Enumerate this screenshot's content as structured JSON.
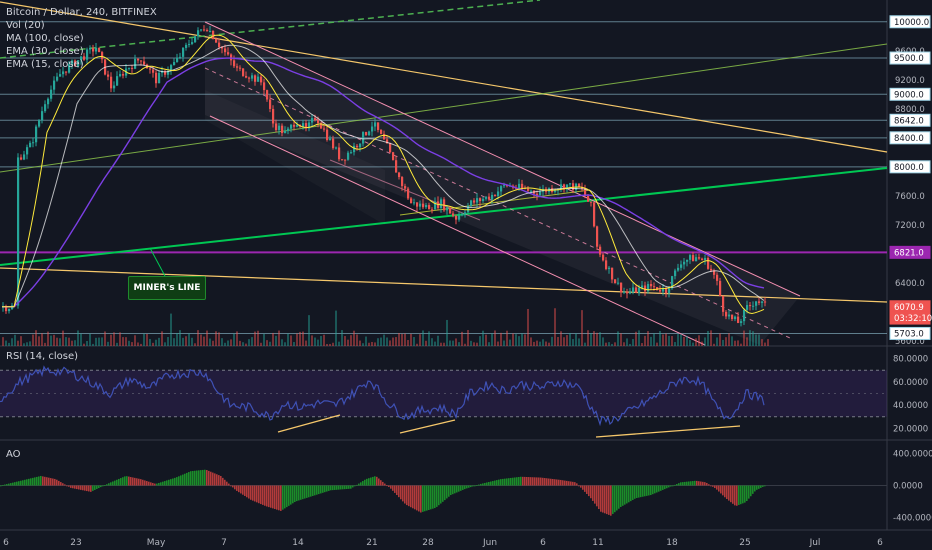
{
  "header": {
    "title": "Bitcoin / Dollar, 240, BITFINEX",
    "indicators": [
      "Vol (20)",
      "MA (100, close)",
      "EMA (30, close)",
      "EMA (15, close)"
    ]
  },
  "annotation": {
    "text": "MINER's LINE"
  },
  "colors": {
    "background": "#131722",
    "up": "#26a69a",
    "down": "#ef5350",
    "ma": "#7b3fe4",
    "ema30": "#ffffff",
    "ema15": "#ffeb3b",
    "channel": "#f48fb1",
    "resistance": "#f5c76b",
    "support": "#4caf50",
    "minerLine": "#00c853",
    "purpleLevel": "#9c27b0",
    "rsi": "#3f51b5",
    "aoUp": "#1b8c2a",
    "aoDown": "#b23b3b"
  },
  "rsi": {
    "label": "RSI (14, close)",
    "y_ticks": [
      "80.0000",
      "60.0000",
      "40.0000",
      "20.0000"
    ],
    "overbought": 70,
    "oversold": 30
  },
  "ao": {
    "label": "AO",
    "y_ticks": [
      "400.0000",
      "0.0000",
      "-400.0000"
    ]
  },
  "chart_data": {
    "type": "candlestick",
    "title": "Bitcoin / Dollar, 240, BITFINEX",
    "x_ticks": [
      "6",
      "23",
      "May",
      "7",
      "14",
      "21",
      "28",
      "Jun",
      "6",
      "11",
      "18",
      "25",
      "Jul",
      "6"
    ],
    "y_ticks": [
      "9600.0",
      "9200.0",
      "8800.0",
      "8000.0",
      "7600.0",
      "7200.0",
      "6400.0",
      "5600.0"
    ],
    "price_labels": [
      {
        "text": "10000.0",
        "value": 10000,
        "style": "level"
      },
      {
        "text": "9500.0",
        "value": 9500,
        "style": "level"
      },
      {
        "text": "9000.0",
        "value": 9000,
        "style": "level"
      },
      {
        "text": "8642.0",
        "value": 8642,
        "style": "level"
      },
      {
        "text": "8400.0",
        "value": 8400,
        "style": "level"
      },
      {
        "text": "8000.0",
        "value": 8000,
        "style": "level"
      },
      {
        "text": "6821.0",
        "value": 6821,
        "style": "purple"
      },
      {
        "text": "6070.9",
        "value": 6070.9,
        "style": "last"
      },
      {
        "text": "03:32:10",
        "value": 5915,
        "style": "timer"
      },
      {
        "text": "5703.0",
        "value": 5703,
        "style": "level"
      }
    ],
    "last_price": 6070.9,
    "countdown": "03:32:10",
    "ylim": [
      5530,
      10300
    ],
    "rsi_range": [
      10,
      90
    ],
    "ao_range": [
      -560,
      560
    ],
    "horizontal_levels": [
      10000,
      9500,
      9000,
      8642,
      8400,
      8000,
      5703
    ],
    "purple_level": 6821,
    "anchors": [
      [
        16,
        8100
      ],
      [
        30,
        8300
      ],
      [
        45,
        8950
      ],
      [
        60,
        9300
      ],
      [
        75,
        9450
      ],
      [
        95,
        9650
      ],
      [
        110,
        9100
      ],
      [
        125,
        9350
      ],
      [
        140,
        9500
      ],
      [
        155,
        9200
      ],
      [
        175,
        9450
      ],
      [
        190,
        9750
      ],
      [
        205,
        9950
      ],
      [
        220,
        9650
      ],
      [
        235,
        9350
      ],
      [
        250,
        9250
      ],
      [
        262,
        9150
      ],
      [
        272,
        8600
      ],
      [
        285,
        8450
      ],
      [
        295,
        8650
      ],
      [
        305,
        8500
      ],
      [
        315,
        8700
      ],
      [
        325,
        8450
      ],
      [
        340,
        8100
      ],
      [
        355,
        8300
      ],
      [
        372,
        8600
      ],
      [
        385,
        8300
      ],
      [
        398,
        7850
      ],
      [
        410,
        7500
      ],
      [
        425,
        7450
      ],
      [
        440,
        7500
      ],
      [
        455,
        7300
      ],
      [
        470,
        7500
      ],
      [
        490,
        7600
      ],
      [
        505,
        7750
      ],
      [
        520,
        7700
      ],
      [
        535,
        7650
      ],
      [
        550,
        7700
      ],
      [
        565,
        7750
      ],
      [
        580,
        7700
      ],
      [
        590,
        7450
      ],
      [
        596,
        6900
      ],
      [
        605,
        6650
      ],
      [
        615,
        6400
      ],
      [
        625,
        6250
      ],
      [
        635,
        6300
      ],
      [
        650,
        6350
      ],
      [
        665,
        6300
      ],
      [
        680,
        6700
      ],
      [
        695,
        6750
      ],
      [
        705,
        6700
      ],
      [
        715,
        6450
      ],
      [
        722,
        6050
      ],
      [
        730,
        5900
      ],
      [
        738,
        5850
      ],
      [
        746,
        6050
      ],
      [
        755,
        6170
      ],
      [
        765,
        6070
      ]
    ],
    "rsi_anchors": [
      [
        0,
        45
      ],
      [
        20,
        60
      ],
      [
        45,
        70
      ],
      [
        70,
        68
      ],
      [
        90,
        60
      ],
      [
        110,
        50
      ],
      [
        130,
        62
      ],
      [
        150,
        55
      ],
      [
        170,
        66
      ],
      [
        190,
        68
      ],
      [
        205,
        68
      ],
      [
        215,
        55
      ],
      [
        230,
        40
      ],
      [
        250,
        38
      ],
      [
        270,
        30
      ],
      [
        285,
        42
      ],
      [
        300,
        38
      ],
      [
        320,
        42
      ],
      [
        335,
        40
      ],
      [
        350,
        48
      ],
      [
        370,
        62
      ],
      [
        390,
        40
      ],
      [
        405,
        30
      ],
      [
        420,
        35
      ],
      [
        440,
        38
      ],
      [
        455,
        32
      ],
      [
        470,
        50
      ],
      [
        490,
        58
      ],
      [
        505,
        52
      ],
      [
        520,
        58
      ],
      [
        540,
        55
      ],
      [
        560,
        60
      ],
      [
        580,
        55
      ],
      [
        590,
        40
      ],
      [
        600,
        26
      ],
      [
        615,
        28
      ],
      [
        630,
        35
      ],
      [
        645,
        42
      ],
      [
        660,
        50
      ],
      [
        680,
        62
      ],
      [
        695,
        62
      ],
      [
        705,
        55
      ],
      [
        715,
        40
      ],
      [
        725,
        30
      ],
      [
        735,
        34
      ],
      [
        745,
        50
      ],
      [
        755,
        48
      ],
      [
        765,
        43
      ]
    ],
    "ao_anchors": [
      [
        0,
        0
      ],
      [
        20,
        60
      ],
      [
        40,
        120
      ],
      [
        55,
        80
      ],
      [
        70,
        -30
      ],
      [
        90,
        -80
      ],
      [
        110,
        40
      ],
      [
        125,
        120
      ],
      [
        140,
        80
      ],
      [
        155,
        20
      ],
      [
        175,
        100
      ],
      [
        190,
        180
      ],
      [
        205,
        200
      ],
      [
        220,
        120
      ],
      [
        235,
        -60
      ],
      [
        250,
        -180
      ],
      [
        265,
        -260
      ],
      [
        280,
        -320
      ],
      [
        295,
        -200
      ],
      [
        315,
        -120
      ],
      [
        330,
        -60
      ],
      [
        350,
        -40
      ],
      [
        365,
        80
      ],
      [
        375,
        120
      ],
      [
        390,
        -40
      ],
      [
        405,
        -240
      ],
      [
        420,
        -340
      ],
      [
        435,
        -280
      ],
      [
        450,
        -120
      ],
      [
        465,
        -40
      ],
      [
        480,
        20
      ],
      [
        500,
        80
      ],
      [
        520,
        110
      ],
      [
        540,
        100
      ],
      [
        560,
        70
      ],
      [
        575,
        40
      ],
      [
        590,
        -160
      ],
      [
        600,
        -330
      ],
      [
        610,
        -380
      ],
      [
        620,
        -270
      ],
      [
        635,
        -160
      ],
      [
        650,
        -120
      ],
      [
        665,
        -40
      ],
      [
        680,
        40
      ],
      [
        695,
        60
      ],
      [
        705,
        40
      ],
      [
        715,
        -40
      ],
      [
        725,
        -160
      ],
      [
        735,
        -260
      ],
      [
        745,
        -210
      ],
      [
        755,
        -60
      ],
      [
        765,
        0
      ]
    ]
  }
}
